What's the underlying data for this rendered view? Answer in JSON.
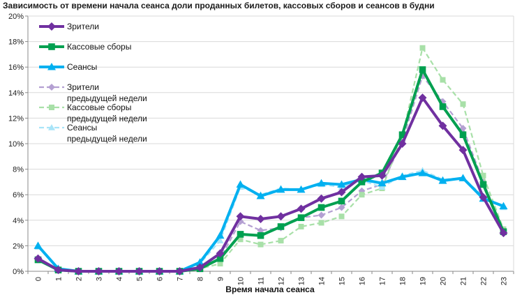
{
  "chart_data": {
    "type": "line",
    "title": "Зависимость от времени начала сеанса доли проданных билетов, кассовых сборов и сеансов в будни",
    "xlabel": "Время начала сеанса",
    "ylabel": "",
    "x": [
      "0",
      "1",
      "2",
      "3",
      "4",
      "5",
      "6",
      "7",
      "8",
      "9",
      "10",
      "11",
      "12",
      "13",
      "14",
      "15",
      "16",
      "17",
      "18",
      "19",
      "20",
      "21",
      "22",
      "23"
    ],
    "ylim": [
      0,
      20
    ],
    "yticks": [
      "0%",
      "2%",
      "4%",
      "6%",
      "8%",
      "10%",
      "12%",
      "14%",
      "16%",
      "18%",
      "20%"
    ],
    "grid": true,
    "legend_position": "top-left",
    "series": [
      {
        "name": "Зрители",
        "color": "#7030a0",
        "dashed": false,
        "marker": "diamond",
        "values": [
          1.0,
          0.1,
          0.0,
          0.0,
          0.0,
          0.0,
          0.0,
          0.0,
          0.3,
          1.4,
          4.3,
          4.1,
          4.3,
          4.9,
          5.7,
          6.2,
          7.4,
          7.5,
          10.0,
          13.6,
          11.4,
          9.5,
          5.8,
          3.0
        ]
      },
      {
        "name": "Кассовые сборы",
        "color": "#00a050",
        "dashed": false,
        "marker": "square",
        "values": [
          0.9,
          0.1,
          0.0,
          0.0,
          0.0,
          0.0,
          0.0,
          0.0,
          0.2,
          1.0,
          2.9,
          2.8,
          3.5,
          4.2,
          5.0,
          5.5,
          7.0,
          7.7,
          10.7,
          15.8,
          12.9,
          10.7,
          6.8,
          3.1
        ]
      },
      {
        "name": "Сеансы",
        "color": "#00b0f0",
        "dashed": false,
        "marker": "triangle",
        "values": [
          2.0,
          0.2,
          0.0,
          0.0,
          0.0,
          0.0,
          0.0,
          0.0,
          0.7,
          2.8,
          6.8,
          5.9,
          6.4,
          6.4,
          6.9,
          6.8,
          7.2,
          6.9,
          7.4,
          7.7,
          7.1,
          7.3,
          5.7,
          5.1
        ]
      },
      {
        "name": "Зрители предыдущей недели",
        "color": "#b4a0d2",
        "dashed": true,
        "marker": "diamond",
        "values": [
          1.0,
          0.1,
          0.0,
          0.0,
          0.0,
          0.0,
          0.0,
          0.0,
          0.3,
          1.0,
          3.9,
          3.2,
          3.4,
          4.2,
          4.4,
          5.0,
          6.3,
          6.8,
          10.2,
          15.3,
          13.3,
          11.2,
          7.0,
          3.2
        ]
      },
      {
        "name": "Кассовые сборы предыдущей недели",
        "color": "#a8e0a8",
        "dashed": true,
        "marker": "square",
        "values": [
          0.9,
          0.1,
          0.0,
          0.0,
          0.0,
          0.0,
          0.0,
          0.0,
          0.2,
          0.6,
          2.5,
          2.1,
          2.4,
          3.5,
          3.8,
          4.3,
          6.0,
          6.5,
          10.6,
          17.5,
          15.0,
          13.1,
          7.5,
          3.3
        ]
      },
      {
        "name": "Сеансы предыдущей недели",
        "color": "#a8e4f8",
        "dashed": true,
        "marker": "triangle",
        "values": [
          1.9,
          0.2,
          0.0,
          0.0,
          0.0,
          0.0,
          0.0,
          0.0,
          0.6,
          2.4,
          6.6,
          6.0,
          6.5,
          6.4,
          6.8,
          6.6,
          7.1,
          6.6,
          7.5,
          7.9,
          7.2,
          7.3,
          5.9,
          5.0
        ]
      }
    ],
    "legend": [
      {
        "lines": [
          "Зрители"
        ],
        "series": 0
      },
      {
        "lines": [
          "Кассовые сборы"
        ],
        "series": 1
      },
      {
        "lines": [
          "Сеансы"
        ],
        "series": 2
      },
      {
        "lines": [
          "Зрители",
          "предыдущей недели"
        ],
        "series": 3
      },
      {
        "lines": [
          "Кассовые сборы",
          "предыдущей недели"
        ],
        "series": 4
      },
      {
        "lines": [
          "Сеансы",
          "предыдущей недели"
        ],
        "series": 5
      }
    ]
  }
}
